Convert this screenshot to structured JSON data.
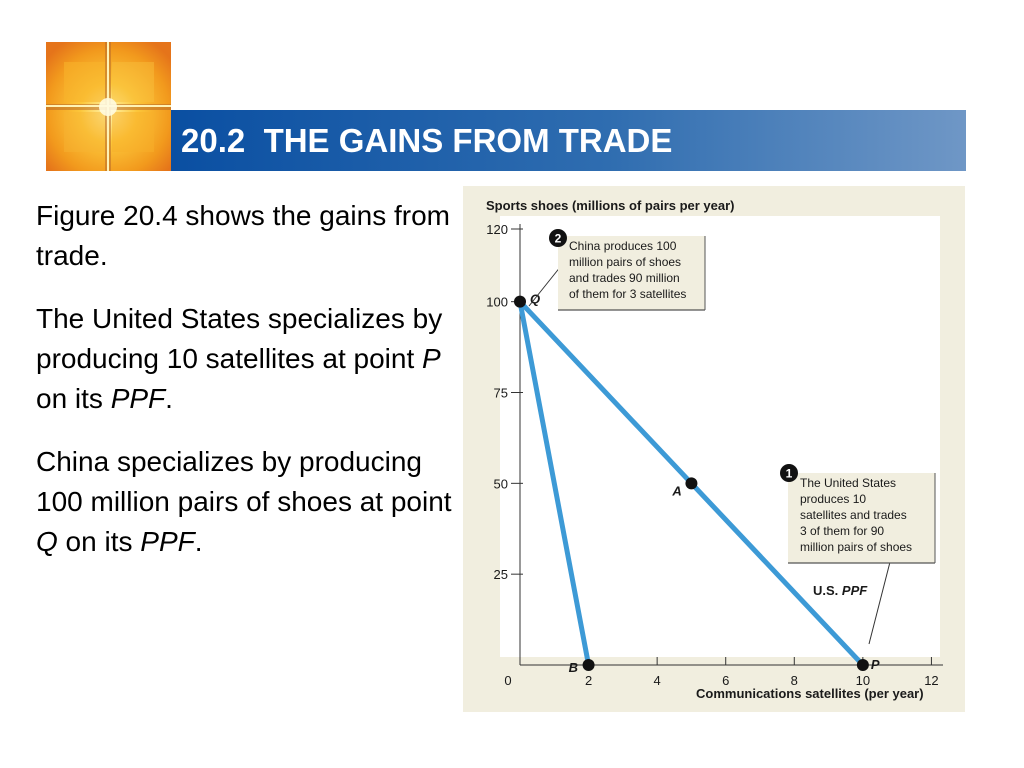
{
  "header": {
    "title": "20.2  THE GAINS FROM TRADE"
  },
  "body": {
    "p1": "Figure 20.4 shows the gains from trade.",
    "p2_a": "The United States specializes by producing 10 satellites at point ",
    "p2_point": "P",
    "p2_b": " on its ",
    "p2_ppf": "PPF",
    "p2_c": ".",
    "p3_a": "China specializes by producing 100 million pairs of shoes at point ",
    "p3_point": "Q",
    "p3_b": " on its ",
    "p3_ppf": "PPF",
    "p3_c": "."
  },
  "chart_data": {
    "type": "line",
    "ylabel": "Sports shoes (millions of pairs per year)",
    "xlabel": "Communications satellites (per year)",
    "xlim": [
      0,
      12
    ],
    "ylim": [
      0,
      120
    ],
    "x_ticks": [
      "0",
      "2",
      "4",
      "6",
      "8",
      "10",
      "12"
    ],
    "y_ticks": [
      "25",
      "50",
      "75",
      "100",
      "120"
    ],
    "line_color": "#3d9ad6",
    "series": [
      {
        "name": "",
        "points": [
          [
            0,
            100
          ],
          [
            2,
            0
          ]
        ]
      },
      {
        "name": "U.S. PPF",
        "points": [
          [
            0,
            100
          ],
          [
            10,
            0
          ]
        ]
      }
    ],
    "points": [
      {
        "label": "Q",
        "x": 0,
        "y": 100
      },
      {
        "label": "A",
        "x": 5,
        "y": 50
      },
      {
        "label": "B",
        "x": 2,
        "y": 0
      },
      {
        "label": "P",
        "x": 10,
        "y": 0
      }
    ],
    "series_label_us_a": "U.S. ",
    "series_label_us_b": "PPF",
    "annotations": [
      {
        "number": "2",
        "lines": [
          "China produces 100",
          "million pairs of shoes",
          "and trades 90 million",
          "of them for 3 satellites"
        ]
      },
      {
        "number": "1",
        "lines": [
          "The United States",
          "produces 10",
          "satellites and trades",
          "3 of them for 90",
          "million pairs of shoes"
        ]
      }
    ]
  }
}
